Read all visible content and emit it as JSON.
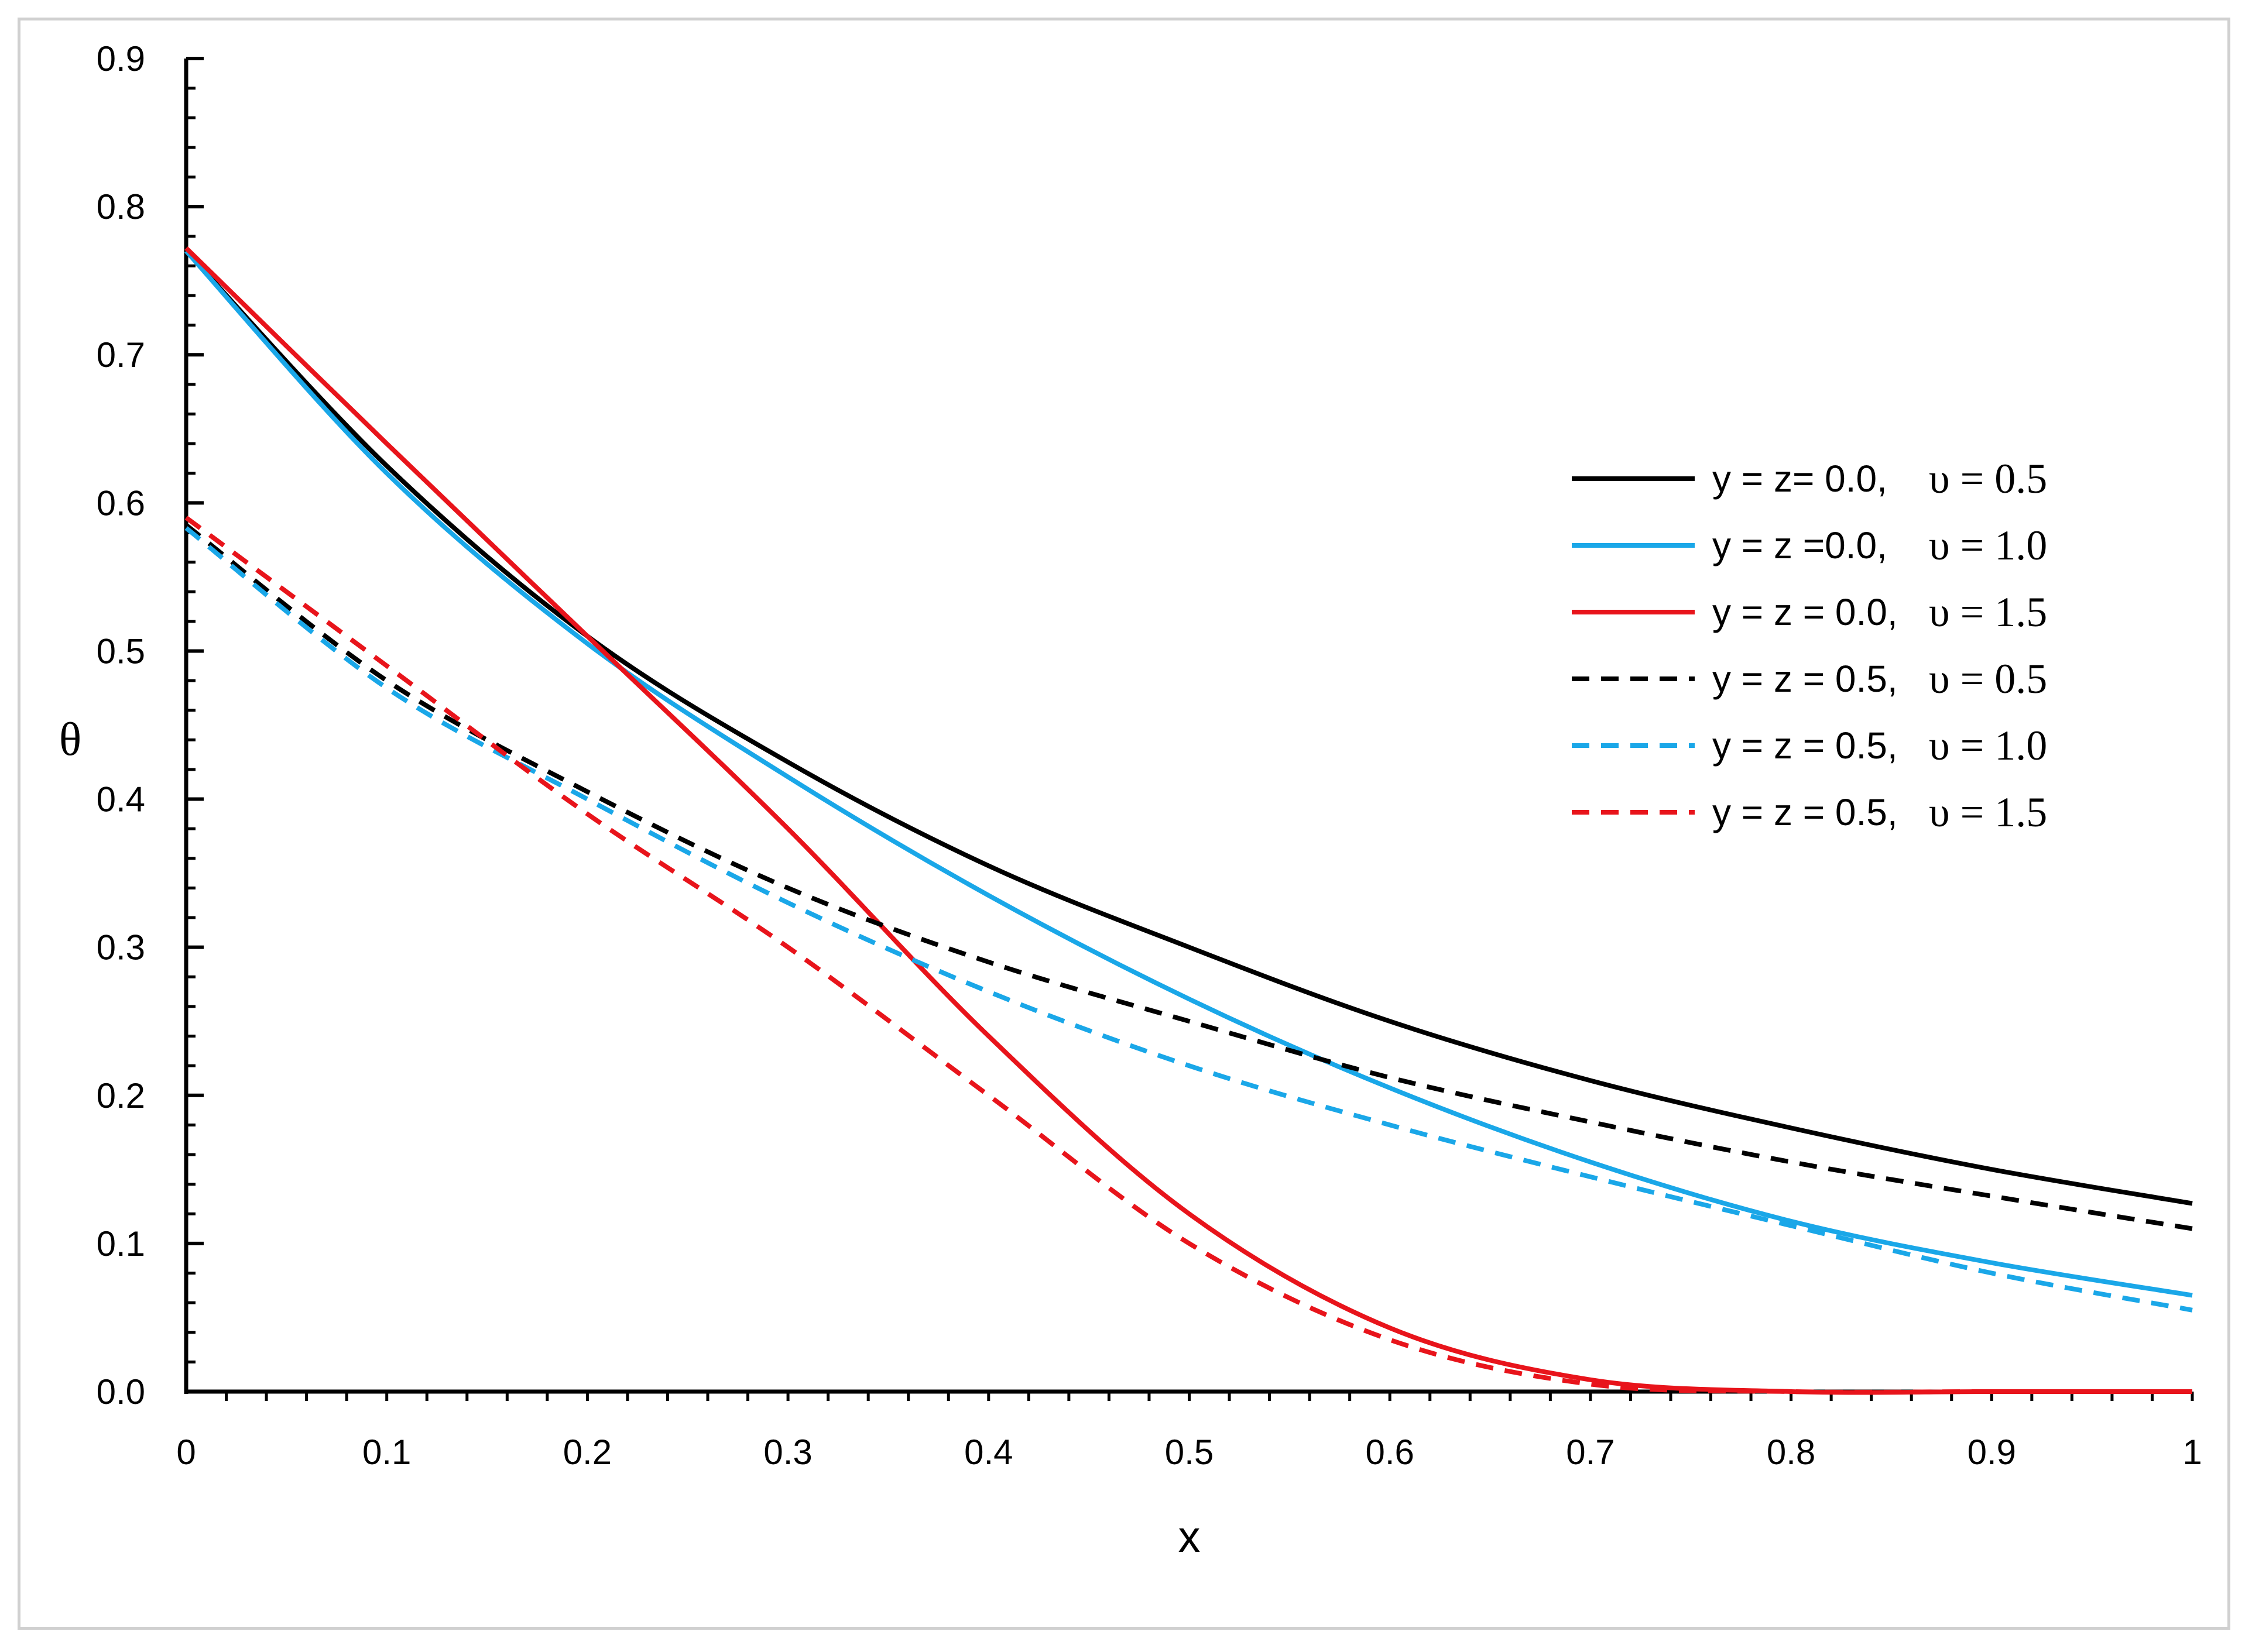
{
  "chart_data": {
    "type": "line",
    "title": "",
    "xlabel": "x",
    "ylabel": "θ",
    "xlim": [
      0,
      1
    ],
    "ylim": [
      0,
      0.9
    ],
    "x_ticks": [
      0,
      0.1,
      0.2,
      0.3,
      0.4,
      0.5,
      0.6,
      0.7,
      0.8,
      0.9,
      1
    ],
    "x_tick_labels": [
      "0",
      "0.1",
      "0.2",
      "0.3",
      "0.4",
      "0.5",
      "0.6",
      "0.7",
      "0.8",
      "0.9",
      "1"
    ],
    "y_ticks": [
      0,
      0.1,
      0.2,
      0.3,
      0.4,
      0.5,
      0.6,
      0.7,
      0.8,
      0.9
    ],
    "y_tick_labels": [
      "0.0",
      "0.1",
      "0.2",
      "0.3",
      "0.4",
      "0.5",
      "0.6",
      "0.7",
      "0.8",
      "0.9"
    ],
    "grid": false,
    "legend_position": "right",
    "x": [
      0,
      0.1,
      0.2,
      0.3,
      0.4,
      0.5,
      0.6,
      0.7,
      0.8,
      0.9,
      1.0
    ],
    "series": [
      {
        "name": "y = z= 0.0, υ = 0.5",
        "label_main": "y = z= 0.0,",
        "label_param": "υ = 0.5",
        "color": "#000000",
        "dash": "solid",
        "values": [
          0.77,
          0.625,
          0.51,
          0.425,
          0.355,
          0.3,
          0.25,
          0.21,
          0.178,
          0.15,
          0.127
        ]
      },
      {
        "name": "y = z =0.0, υ = 1.0",
        "label_main": "y = z =0.0,",
        "label_param": "υ = 1.0",
        "color": "#1aa7e8",
        "dash": "solid",
        "values": [
          0.77,
          0.62,
          0.505,
          0.415,
          0.335,
          0.265,
          0.205,
          0.155,
          0.115,
          0.087,
          0.065
        ]
      },
      {
        "name": "y = z = 0.0, υ = 1.5",
        "label_main": "y = z = 0.0,",
        "label_param": "υ = 1.5",
        "color": "#e8141b",
        "dash": "solid",
        "values": [
          0.772,
          0.64,
          0.51,
          0.38,
          0.24,
          0.12,
          0.043,
          0.008,
          0.0,
          0.0,
          0.0
        ]
      },
      {
        "name": "y = z = 0.5, υ = 0.5",
        "label_main": "y = z = 0.5,",
        "label_param": "υ = 0.5",
        "color": "#000000",
        "dash": "dashed",
        "values": [
          0.585,
          0.48,
          0.405,
          0.34,
          0.29,
          0.25,
          0.212,
          0.182,
          0.155,
          0.132,
          0.11
        ]
      },
      {
        "name": "y = z = 0.5, υ = 1.0",
        "label_main": "y = z = 0.5,",
        "label_param": "υ = 1.0",
        "color": "#1aa7e8",
        "dash": "dashed",
        "values": [
          0.583,
          0.475,
          0.4,
          0.33,
          0.27,
          0.22,
          0.18,
          0.145,
          0.112,
          0.08,
          0.055
        ]
      },
      {
        "name": "y = z = 0.5, υ = 1.5",
        "label_main": "y = z = 0.5,",
        "label_param": "υ = 1.5",
        "color": "#e8141b",
        "dash": "dashed",
        "values": [
          0.59,
          0.49,
          0.39,
          0.3,
          0.2,
          0.1,
          0.035,
          0.005,
          0.0,
          0.0,
          0.0
        ]
      }
    ]
  }
}
